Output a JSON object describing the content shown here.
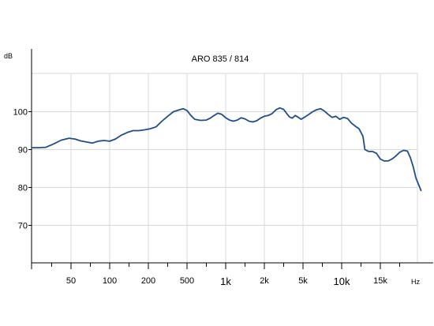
{
  "chart_data": {
    "type": "line",
    "title": "ARO 835 / 814",
    "ylabel": "dB",
    "xlabel": "Hz",
    "x_ticks": [
      "50",
      "100",
      "200",
      "500",
      "1k",
      "2k",
      "5k",
      "10k",
      "15k"
    ],
    "x_ticks_large": [
      "1k",
      "10k"
    ],
    "y_ticks": [
      70,
      80,
      90,
      100
    ],
    "grid": true,
    "line_color": "#1f4e8c",
    "series": [
      {
        "name": "",
        "points": [
          [
            0.0,
            90.5
          ],
          [
            0.15,
            90.5
          ],
          [
            0.35,
            90.6
          ],
          [
            0.55,
            91.5
          ],
          [
            0.75,
            92.5
          ],
          [
            0.95,
            93.0
          ],
          [
            1.1,
            92.8
          ],
          [
            1.25,
            92.3
          ],
          [
            1.4,
            92.0
          ],
          [
            1.55,
            91.7
          ],
          [
            1.7,
            92.2
          ],
          [
            1.85,
            92.4
          ],
          [
            2.0,
            92.2
          ],
          [
            2.15,
            92.8
          ],
          [
            2.3,
            93.8
          ],
          [
            2.45,
            94.5
          ],
          [
            2.6,
            95.0
          ],
          [
            2.75,
            95.0
          ],
          [
            2.9,
            95.2
          ],
          [
            3.05,
            95.5
          ],
          [
            3.2,
            96.0
          ],
          [
            3.35,
            97.5
          ],
          [
            3.5,
            98.8
          ],
          [
            3.65,
            100.0
          ],
          [
            3.8,
            100.5
          ],
          [
            3.9,
            100.8
          ],
          [
            4.0,
            100.3
          ],
          [
            4.1,
            99.0
          ],
          [
            4.2,
            98.0
          ],
          [
            4.35,
            97.7
          ],
          [
            4.5,
            97.8
          ],
          [
            4.6,
            98.3
          ],
          [
            4.7,
            99.0
          ],
          [
            4.8,
            99.6
          ],
          [
            4.9,
            99.3
          ],
          [
            5.0,
            98.4
          ],
          [
            5.1,
            97.8
          ],
          [
            5.2,
            97.5
          ],
          [
            5.3,
            97.8
          ],
          [
            5.4,
            98.4
          ],
          [
            5.5,
            98.1
          ],
          [
            5.6,
            97.5
          ],
          [
            5.7,
            97.3
          ],
          [
            5.8,
            97.6
          ],
          [
            5.9,
            98.3
          ],
          [
            6.0,
            98.8
          ],
          [
            6.1,
            99.0
          ],
          [
            6.2,
            99.5
          ],
          [
            6.3,
            100.5
          ],
          [
            6.4,
            101.0
          ],
          [
            6.5,
            100.6
          ],
          [
            6.58,
            99.5
          ],
          [
            6.65,
            98.6
          ],
          [
            6.72,
            98.3
          ],
          [
            6.8,
            99.0
          ],
          [
            6.88,
            98.5
          ],
          [
            6.95,
            98.0
          ],
          [
            7.05,
            98.6
          ],
          [
            7.15,
            99.3
          ],
          [
            7.25,
            100.0
          ],
          [
            7.35,
            100.5
          ],
          [
            7.45,
            100.8
          ],
          [
            7.55,
            100.2
          ],
          [
            7.65,
            99.3
          ],
          [
            7.75,
            98.5
          ],
          [
            7.85,
            98.8
          ],
          [
            7.95,
            98.0
          ],
          [
            8.05,
            98.5
          ],
          [
            8.15,
            98.2
          ],
          [
            8.25,
            97.0
          ],
          [
            8.35,
            96.2
          ],
          [
            8.45,
            95.5
          ],
          [
            8.55,
            93.5
          ],
          [
            8.6,
            90.0
          ],
          [
            8.7,
            89.5
          ],
          [
            8.8,
            89.5
          ],
          [
            8.9,
            89.0
          ],
          [
            9.0,
            87.5
          ],
          [
            9.1,
            87.0
          ],
          [
            9.2,
            87.0
          ],
          [
            9.3,
            87.5
          ],
          [
            9.4,
            88.3
          ],
          [
            9.5,
            89.3
          ],
          [
            9.6,
            89.8
          ],
          [
            9.7,
            89.6
          ],
          [
            9.78,
            87.8
          ],
          [
            9.85,
            85.5
          ],
          [
            9.92,
            82.5
          ],
          [
            10.0,
            80.5
          ],
          [
            10.05,
            79.2
          ]
        ]
      }
    ]
  }
}
